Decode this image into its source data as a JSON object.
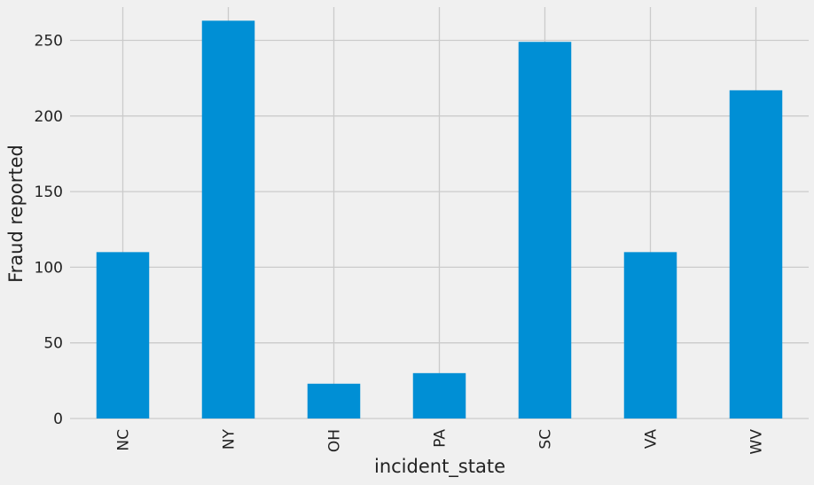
{
  "chart_data": {
    "type": "bar",
    "categories": [
      "NC",
      "NY",
      "OH",
      "PA",
      "SC",
      "VA",
      "WV"
    ],
    "values": [
      110,
      263,
      23,
      30,
      249,
      110,
      217
    ],
    "title": "",
    "xlabel": "incident_state",
    "ylabel": "Fraud reported",
    "ylim": [
      0,
      272
    ],
    "yticks": [
      0,
      50,
      100,
      150,
      200,
      250
    ],
    "grid": true,
    "legend": "none",
    "colors": {
      "bar": "#008fd5",
      "grid": "#cbcbcb",
      "background": "#f0f0f0",
      "text": "#222222"
    }
  }
}
